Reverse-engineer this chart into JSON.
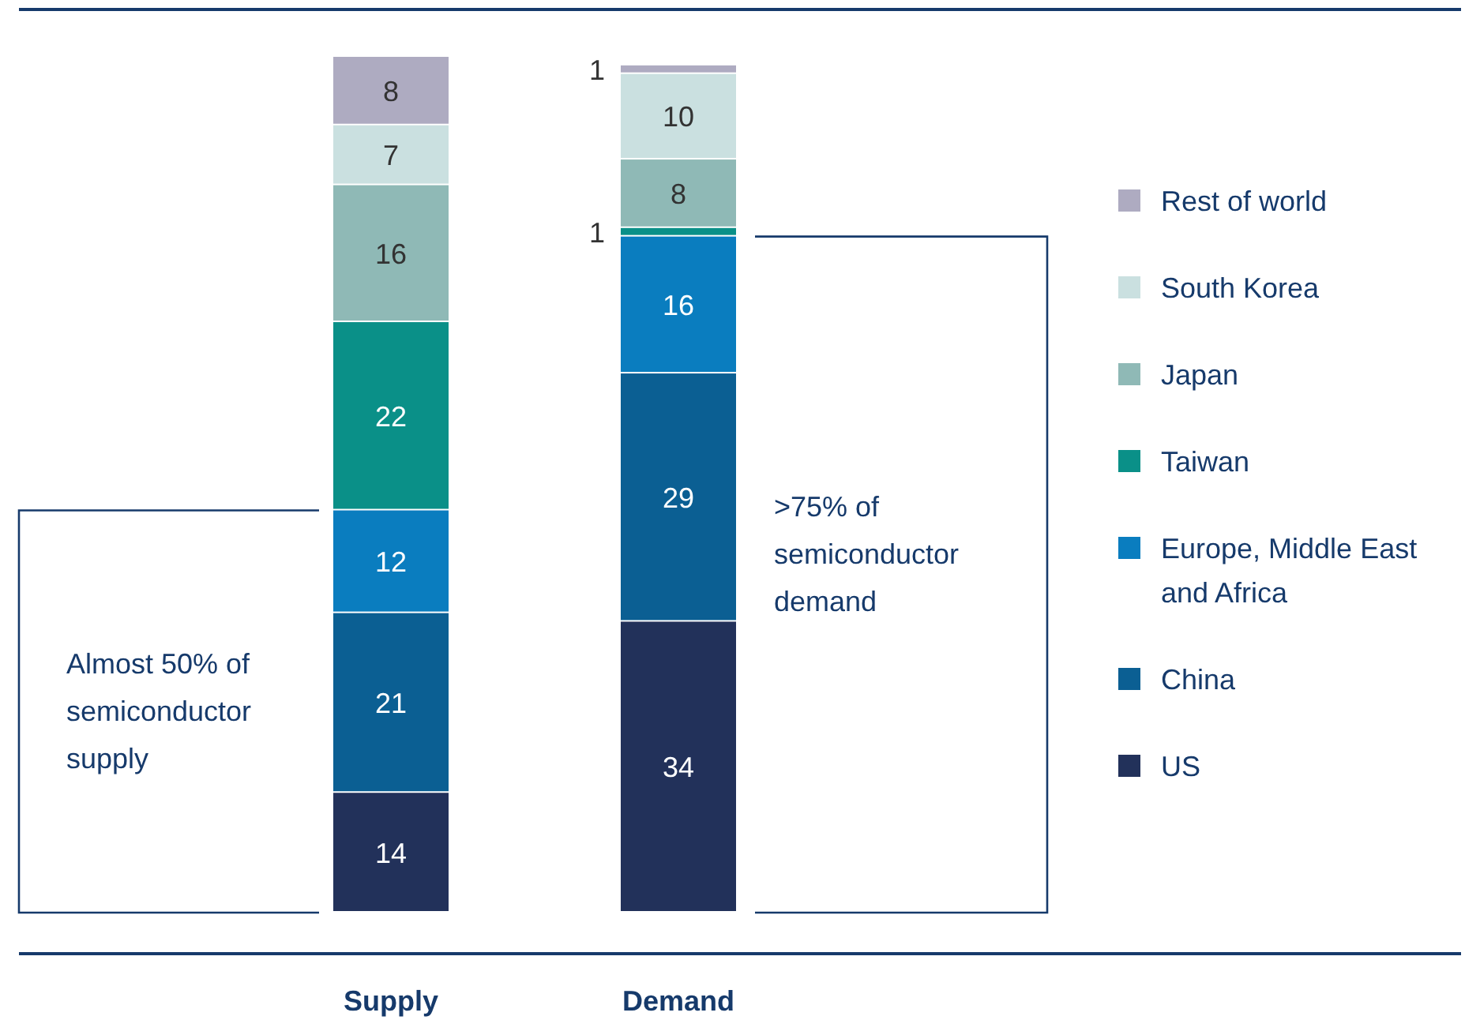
{
  "chart_data": {
    "type": "bar",
    "stacked": true,
    "data_labels": true,
    "legend": "right",
    "categories": [
      "Supply",
      "Demand"
    ],
    "series": [
      {
        "name": "US",
        "color": "#22315a",
        "values": [
          14,
          34
        ]
      },
      {
        "name": "China",
        "color": "#0b5f93",
        "values": [
          21,
          29
        ]
      },
      {
        "name": "Europe, Middle East and Africa",
        "color": "#0a7dbf",
        "values": [
          12,
          16
        ]
      },
      {
        "name": "Taiwan",
        "color": "#0a9088",
        "values": [
          22,
          1
        ]
      },
      {
        "name": "Japan",
        "color": "#8fb9b6",
        "values": [
          16,
          8
        ]
      },
      {
        "name": "South Korea",
        "color": "#cae0e0",
        "values": [
          7,
          10
        ]
      },
      {
        "name": "Rest of world",
        "color": "#aeabc1",
        "values": [
          8,
          1
        ]
      }
    ],
    "annotations": [
      "Almost 50% of semiconductor supply",
      ">75% of semiconductor demand"
    ]
  }
}
